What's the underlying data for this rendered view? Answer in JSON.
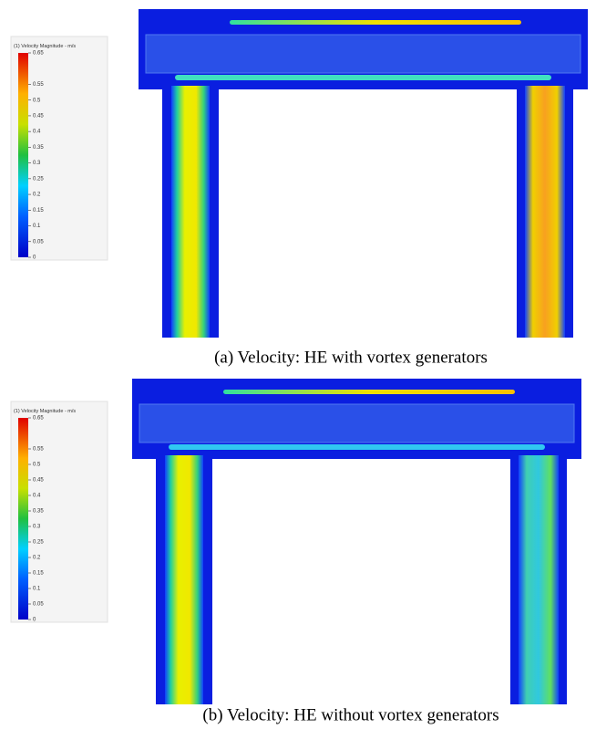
{
  "panels": [
    {
      "legend": {
        "title": "(1) Velocity Magnitude - m/s",
        "ticks": [
          0.65,
          0.55,
          0.5,
          0.45,
          0.4,
          0.35,
          0.3,
          0.25,
          0.2,
          0.15,
          0.1,
          0.05,
          0
        ]
      },
      "caption": "(a) Velocity: HE with vortex generators"
    },
    {
      "legend": {
        "title": "(1) Velocity Magnitude - m/s",
        "ticks": [
          0.65,
          0.55,
          0.5,
          0.45,
          0.4,
          0.35,
          0.3,
          0.25,
          0.2,
          0.15,
          0.1,
          0.05,
          0
        ]
      },
      "caption": "(b) Velocity: HE without vortex generators"
    }
  ]
}
